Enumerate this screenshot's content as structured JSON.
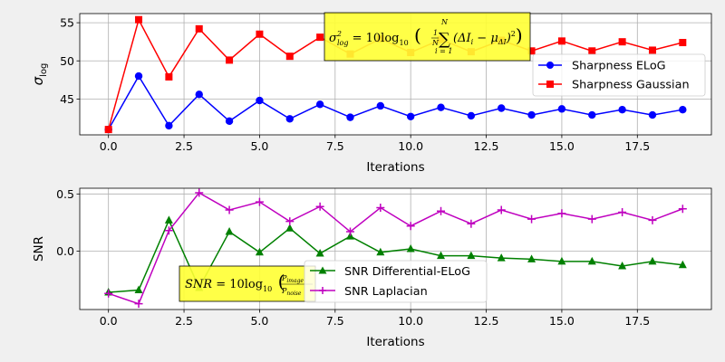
{
  "colors": {
    "background": "#f0f0f0",
    "axes_bg": "#ffffff",
    "grid": "#b0b0b0",
    "annotation_bg": "#ffff33"
  },
  "chart_data": [
    {
      "type": "line",
      "xlabel": "Iterations",
      "ylabel": "σ_log",
      "xlim": [
        -0.95,
        19.95
      ],
      "ylim": [
        40.3,
        56.2
      ],
      "xticks": [
        0.0,
        2.5,
        5.0,
        7.5,
        10.0,
        12.5,
        15.0,
        17.5
      ],
      "xtick_labels": [
        "0.0",
        "2.5",
        "5.0",
        "7.5",
        "10.0",
        "12.5",
        "15.0",
        "17.5"
      ],
      "yticks": [
        45,
        50,
        55
      ],
      "ytick_labels": [
        "45",
        "50",
        "55"
      ],
      "grid": true,
      "legend_placement": "right",
      "annotation": "σ²_log = 10 log₁₀ ( (1/N) Σ_{i=1}^{N} (ΔI_i − μ_ΔI)² )",
      "x": [
        0,
        1,
        2,
        3,
        4,
        5,
        6,
        7,
        8,
        9,
        10,
        11,
        12,
        13,
        14,
        15,
        16,
        17,
        18,
        19
      ],
      "series": [
        {
          "name": "Sharpness ELoG",
          "color": "#0000ff",
          "marker": "circle",
          "values": [
            41.0,
            48.0,
            41.5,
            45.6,
            42.1,
            44.8,
            42.4,
            44.3,
            42.6,
            44.1,
            42.7,
            43.9,
            42.8,
            43.8,
            42.9,
            43.7,
            42.9,
            43.6,
            42.9,
            43.6
          ]
        },
        {
          "name": "Sharpness Gaussian",
          "color": "#ff0000",
          "marker": "square",
          "values": [
            41.0,
            55.4,
            47.9,
            54.2,
            50.1,
            53.5,
            50.6,
            53.1,
            50.9,
            52.9,
            51.1,
            52.8,
            51.2,
            52.7,
            51.3,
            52.6,
            51.3,
            52.5,
            51.4,
            52.4
          ]
        }
      ]
    },
    {
      "type": "line",
      "xlabel": "Iterations",
      "ylabel": "SNR",
      "xlim": [
        -0.95,
        19.95
      ],
      "ylim": [
        -0.51,
        0.55
      ],
      "xticks": [
        0.0,
        2.5,
        5.0,
        7.5,
        10.0,
        12.5,
        15.0,
        17.5
      ],
      "xtick_labels": [
        "0.0",
        "2.5",
        "5.0",
        "7.5",
        "10.0",
        "12.5",
        "15.0",
        "17.5"
      ],
      "yticks": [
        0.5,
        0.0
      ],
      "ytick_labels": [
        "0.5",
        "0.0"
      ],
      "grid": true,
      "legend_placement": "lower center",
      "annotation": "SNR = 10 log₁₀ ( P_image / P_noise )",
      "x": [
        0,
        1,
        2,
        3,
        4,
        5,
        6,
        7,
        8,
        9,
        10,
        11,
        12,
        13,
        14,
        15,
        16,
        17,
        18,
        19
      ],
      "series": [
        {
          "name": "SNR Differential-ELoG",
          "color": "#008000",
          "marker": "triangle",
          "values": [
            -0.36,
            -0.34,
            0.27,
            -0.32,
            0.17,
            -0.01,
            0.2,
            -0.02,
            0.13,
            -0.01,
            0.02,
            -0.04,
            -0.04,
            -0.06,
            -0.07,
            -0.09,
            -0.09,
            -0.13,
            -0.09,
            -0.12
          ]
        },
        {
          "name": "SNR Laplacian",
          "color": "#bf00bf",
          "marker": "plus",
          "values": [
            -0.37,
            -0.46,
            0.18,
            0.51,
            0.36,
            0.43,
            0.26,
            0.39,
            0.17,
            0.38,
            0.22,
            0.35,
            0.24,
            0.36,
            0.28,
            0.33,
            0.28,
            0.34,
            0.27,
            0.37
          ]
        }
      ]
    }
  ]
}
